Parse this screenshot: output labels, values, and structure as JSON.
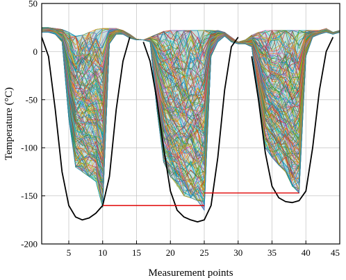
{
  "chart_data": {
    "type": "line",
    "title": "",
    "xlabel": "Measurement points",
    "ylabel": "Temperature (°C)",
    "xlim": [
      1,
      45
    ],
    "ylim": [
      -200,
      50
    ],
    "xticks": [
      5,
      10,
      15,
      20,
      25,
      30,
      35,
      40,
      45
    ],
    "yticks": [
      -200,
      -150,
      -100,
      -50,
      0,
      50
    ],
    "grid": true,
    "legend": "none",
    "colors": {
      "envelope_curve": "#000000",
      "threshold_line": "#e00000",
      "band_palette": [
        "#1f77b4",
        "#ff7f0e",
        "#2ca02c",
        "#d62728",
        "#9467bd",
        "#8c564b",
        "#e377c2",
        "#7f7f7f",
        "#bcbd22",
        "#17becf",
        "#3a7d3a",
        "#c8a000",
        "#00a0c8"
      ]
    },
    "band": {
      "description_units": "temperature range spanned by the many multicolored measurement curves",
      "x": [
        1,
        2,
        3,
        4,
        5,
        6,
        7,
        8,
        9,
        10,
        11,
        12,
        13,
        14,
        15,
        16,
        17,
        18,
        19,
        20,
        21,
        22,
        23,
        24,
        25,
        26,
        27,
        28,
        29,
        30,
        31,
        32,
        33,
        34,
        35,
        36,
        37,
        38,
        39,
        40,
        41,
        42,
        43,
        44,
        45
      ],
      "upper": [
        25,
        25,
        24,
        23,
        20,
        16,
        17,
        20,
        23,
        24,
        24,
        24,
        22,
        18,
        13,
        12,
        15,
        18,
        21,
        22,
        22,
        22,
        22,
        22,
        22,
        22,
        22,
        20,
        15,
        10,
        12,
        17,
        20,
        22,
        22,
        22,
        22,
        22,
        22,
        22,
        22,
        22,
        24,
        20,
        22
      ],
      "lower": [
        20,
        20,
        18,
        10,
        -70,
        -120,
        -125,
        -130,
        -135,
        -162,
        8,
        18,
        18,
        14,
        12,
        12,
        10,
        -60,
        -115,
        -130,
        -140,
        -150,
        -152,
        -155,
        -165,
        -5,
        10,
        16,
        10,
        8,
        8,
        5,
        -50,
        -100,
        -110,
        -118,
        -125,
        -140,
        -147,
        -5,
        15,
        18,
        20,
        18,
        20
      ]
    },
    "series": [
      {
        "x": [
          1,
          2,
          3,
          4,
          5,
          6,
          7,
          8,
          9,
          10,
          11,
          12,
          13,
          14,
          15,
          16,
          17,
          18,
          19,
          20,
          21,
          22,
          23,
          24,
          25,
          26,
          27,
          28,
          29,
          30,
          31,
          32,
          33,
          34,
          35,
          36,
          37,
          38,
          39,
          40,
          41,
          42,
          43,
          44
        ],
        "y": [
          15,
          -5,
          -60,
          -125,
          -160,
          -172,
          -175,
          -173,
          -168,
          -160,
          -130,
          -60,
          -10,
          15,
          null,
          10,
          -10,
          -50,
          -100,
          -145,
          -165,
          -172,
          -175,
          -177,
          -175,
          -160,
          -110,
          -40,
          5,
          15,
          null,
          -5,
          -50,
          -105,
          -140,
          -152,
          -156,
          -157,
          -155,
          -145,
          -100,
          -40,
          0,
          15
        ],
        "style": "black"
      },
      {
        "x": [
          10,
          25
        ],
        "y": [
          -160,
          -160
        ],
        "style": "red"
      },
      {
        "x": [
          25,
          39
        ],
        "y": [
          -147,
          -147
        ],
        "style": "red"
      }
    ]
  }
}
